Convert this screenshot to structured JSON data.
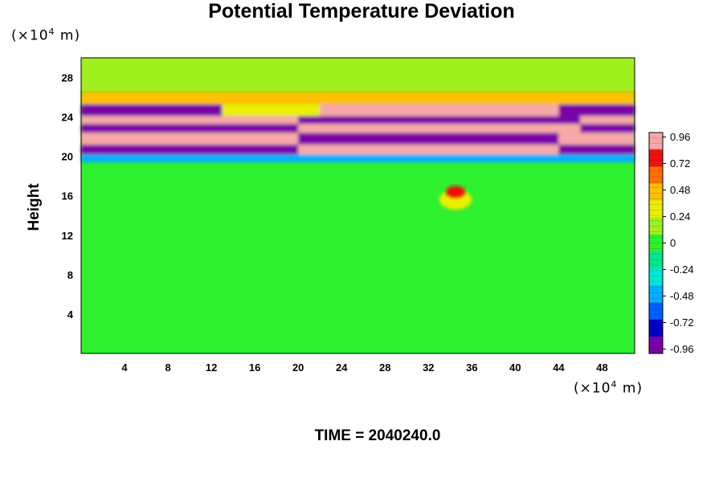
{
  "chart_data": {
    "type": "heatmap",
    "title": "Potential Temperature Deviation",
    "ylabel": "Height",
    "y_unit_prefix": "(×10",
    "y_unit_exp": "4",
    "y_unit_suffix": " m)",
    "x_unit_prefix": "(×10",
    "x_unit_exp": "4",
    "x_unit_suffix": " m)",
    "xlim": [
      0,
      51
    ],
    "ylim": [
      0,
      30
    ],
    "x_ticks": [
      "4",
      "8",
      "12",
      "16",
      "20",
      "24",
      "28",
      "32",
      "36",
      "40",
      "44",
      "48"
    ],
    "y_ticks": [
      "4",
      "8",
      "12",
      "16",
      "20",
      "24",
      "28"
    ],
    "x_tick_values": [
      4,
      8,
      12,
      16,
      20,
      24,
      28,
      32,
      36,
      40,
      44,
      48
    ],
    "y_tick_values": [
      4,
      8,
      12,
      16,
      20,
      24,
      28
    ],
    "colorbar_labels": [
      "0.96",
      "0.72",
      "0.48",
      "0.24",
      "0",
      "-0.24",
      "-0.48",
      "-0.72",
      "-0.96"
    ],
    "colorbar_values": [
      0.96,
      0.72,
      0.48,
      0.24,
      0,
      -0.24,
      -0.48,
      -0.72,
      -0.96
    ],
    "colorbar_range": [
      -1.0,
      1.0
    ],
    "colorbar_colors": [
      "#7a00a8",
      "#0000c8",
      "#0060ff",
      "#00b0ff",
      "#00e8d8",
      "#00e890",
      "#2ef02e",
      "#a0f020",
      "#e8f000",
      "#ffc000",
      "#ff7000",
      "#f01010",
      "#f8a8a8"
    ],
    "time_label": "TIME = 2040240.0",
    "bands": [
      {
        "y0": 19.4,
        "y1": 20.2,
        "segments": [
          {
            "x0": 0,
            "x1": 51,
            "value": -0.5
          }
        ]
      },
      {
        "y0": 20.2,
        "y1": 21.2,
        "segments": [
          {
            "x0": 0,
            "x1": 20,
            "value": -0.98
          },
          {
            "x0": 20,
            "x1": 44,
            "value": 0.98
          },
          {
            "x0": 44,
            "x1": 51,
            "value": -0.98
          }
        ]
      },
      {
        "y0": 21.2,
        "y1": 22.4,
        "segments": [
          {
            "x0": 0,
            "x1": 20,
            "value": 0.98
          },
          {
            "x0": 20,
            "x1": 44,
            "value": -0.98
          },
          {
            "x0": 44,
            "x1": 51,
            "value": 0.98
          }
        ]
      },
      {
        "y0": 22.4,
        "y1": 23.3,
        "segments": [
          {
            "x0": 0,
            "x1": 20,
            "value": -0.98
          },
          {
            "x0": 20,
            "x1": 46,
            "value": 0.98
          },
          {
            "x0": 46,
            "x1": 51,
            "value": -0.98
          }
        ]
      },
      {
        "y0": 23.3,
        "y1": 24.1,
        "segments": [
          {
            "x0": 0,
            "x1": 20,
            "value": 0.98
          },
          {
            "x0": 20,
            "x1": 46,
            "value": -0.98
          },
          {
            "x0": 46,
            "x1": 51,
            "value": 0.98
          }
        ]
      },
      {
        "y0": 24.1,
        "y1": 25.3,
        "segments": [
          {
            "x0": 0,
            "x1": 13,
            "value": -0.98
          },
          {
            "x0": 13,
            "x1": 22,
            "value": 0.3
          },
          {
            "x0": 22,
            "x1": 44,
            "value": 0.98
          },
          {
            "x0": 44,
            "x1": 51,
            "value": -0.98
          }
        ]
      },
      {
        "y0": 25.3,
        "y1": 26.6,
        "segments": [
          {
            "x0": 0,
            "x1": 51,
            "value": 0.45
          }
        ]
      }
    ],
    "blobs": [
      {
        "x": 34.5,
        "y": 16.4,
        "rx": 0.9,
        "ry": 0.6,
        "value": 0.7
      },
      {
        "x": 34.5,
        "y": 15.6,
        "rx": 1.5,
        "ry": 1.0,
        "value": 0.25
      }
    ]
  }
}
